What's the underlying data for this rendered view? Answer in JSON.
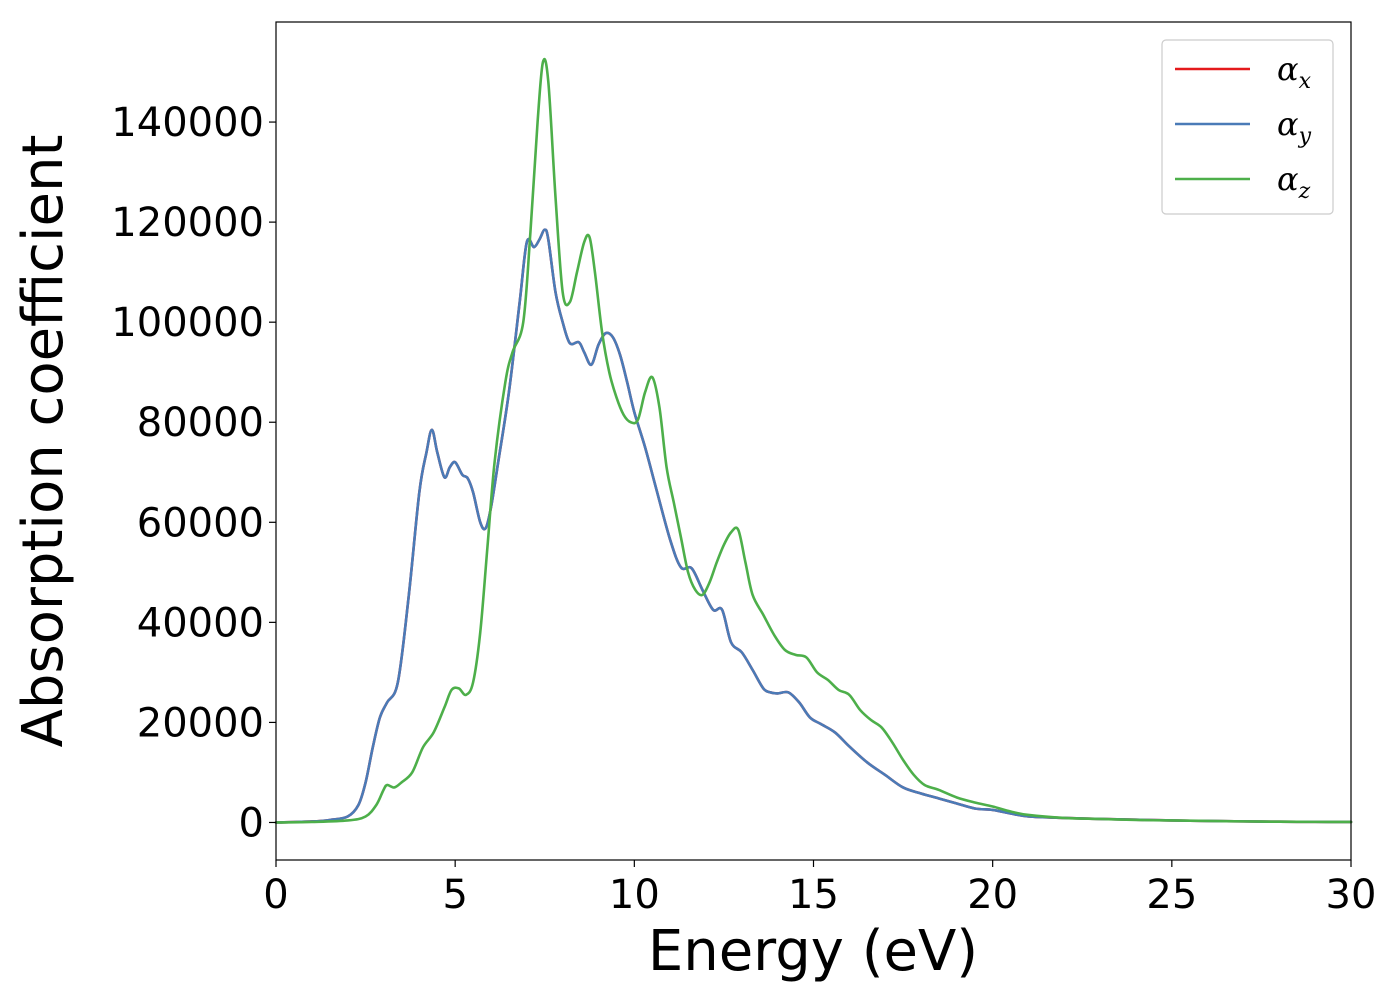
{
  "chart_data": {
    "type": "line",
    "xlabel": "Energy (eV)",
    "ylabel": "Absorption coefficient",
    "xlim": [
      0,
      30
    ],
    "ylim": [
      -7500,
      160000
    ],
    "xticks": [
      0,
      5,
      10,
      15,
      20,
      25,
      30
    ],
    "xtick_labels": [
      "0",
      "5",
      "10",
      "15",
      "20",
      "25",
      "30"
    ],
    "yticks": [
      0,
      20000,
      40000,
      60000,
      80000,
      100000,
      120000,
      140000
    ],
    "ytick_labels": [
      "0",
      "20000",
      "40000",
      "60000",
      "80000",
      "100000",
      "120000",
      "140000"
    ],
    "grid": false,
    "legend_position": "top-right",
    "series": [
      {
        "name": "α",
        "subscript": "x",
        "color": "#e41a1c",
        "x": [
          0,
          1,
          1.5,
          2,
          2.3,
          2.5,
          2.7,
          2.9,
          3.1,
          3.4,
          3.7,
          4.0,
          4.2,
          4.35,
          4.5,
          4.7,
          4.85,
          5.0,
          5.2,
          5.35,
          5.5,
          5.7,
          5.85,
          6.0,
          6.2,
          6.5,
          6.8,
          7.0,
          7.2,
          7.35,
          7.5,
          7.6,
          7.8,
          8.0,
          8.2,
          8.45,
          8.6,
          8.8,
          9.0,
          9.2,
          9.4,
          9.6,
          9.8,
          10.0,
          10.3,
          10.6,
          11.0,
          11.3,
          11.6,
          11.9,
          12.2,
          12.45,
          12.7,
          13.0,
          13.3,
          13.6,
          13.8,
          14.0,
          14.3,
          14.6,
          14.9,
          15.2,
          15.6,
          16.0,
          16.5,
          17.0,
          17.5,
          18.0,
          18.5,
          19.0,
          19.5,
          20.0,
          20.5,
          21.0,
          22.0,
          23.0,
          24.0,
          25.0,
          26.0,
          27.0,
          28.0,
          29.0,
          30.0
        ],
        "y": [
          0,
          200,
          500,
          1200,
          3500,
          8000,
          15000,
          21000,
          24000,
          28000,
          45000,
          66000,
          74000,
          78500,
          74000,
          69000,
          71000,
          72000,
          69500,
          68800,
          66000,
          60000,
          58800,
          63000,
          72000,
          86000,
          104000,
          116000,
          115000,
          116500,
          118500,
          116500,
          106000,
          100000,
          95800,
          96000,
          94000,
          91500,
          95500,
          97800,
          97000,
          93500,
          88000,
          82000,
          75000,
          67000,
          56500,
          51000,
          50800,
          46500,
          42500,
          42500,
          36000,
          34000,
          30500,
          26800,
          26000,
          25800,
          26000,
          24000,
          21000,
          19700,
          18000,
          15200,
          12000,
          9500,
          7000,
          5800,
          4800,
          3800,
          2800,
          2500,
          1800,
          1200,
          900,
          700,
          550,
          400,
          300,
          220,
          150,
          120,
          100
        ]
      },
      {
        "name": "α",
        "subscript": "y",
        "color": "#4a7bb7",
        "x": [
          0,
          1,
          1.5,
          2,
          2.3,
          2.5,
          2.7,
          2.9,
          3.1,
          3.4,
          3.7,
          4.0,
          4.2,
          4.35,
          4.5,
          4.7,
          4.85,
          5.0,
          5.2,
          5.35,
          5.5,
          5.7,
          5.85,
          6.0,
          6.2,
          6.5,
          6.8,
          7.0,
          7.2,
          7.35,
          7.5,
          7.6,
          7.8,
          8.0,
          8.2,
          8.45,
          8.6,
          8.8,
          9.0,
          9.2,
          9.4,
          9.6,
          9.8,
          10.0,
          10.3,
          10.6,
          11.0,
          11.3,
          11.6,
          11.9,
          12.2,
          12.45,
          12.7,
          13.0,
          13.3,
          13.6,
          13.8,
          14.0,
          14.3,
          14.6,
          14.9,
          15.2,
          15.6,
          16.0,
          16.5,
          17.0,
          17.5,
          18.0,
          18.5,
          19.0,
          19.5,
          20.0,
          20.5,
          21.0,
          22.0,
          23.0,
          24.0,
          25.0,
          26.0,
          27.0,
          28.0,
          29.0,
          30.0
        ],
        "y": [
          0,
          200,
          500,
          1200,
          3500,
          8000,
          15000,
          21000,
          24000,
          28000,
          45000,
          66000,
          74000,
          78500,
          74000,
          69000,
          71000,
          72000,
          69500,
          68800,
          66000,
          60000,
          58800,
          63000,
          72000,
          86000,
          104000,
          116000,
          115000,
          116500,
          118500,
          116500,
          106000,
          100000,
          95800,
          96000,
          94000,
          91500,
          95500,
          97800,
          97000,
          93500,
          88000,
          82000,
          75000,
          67000,
          56500,
          51000,
          50800,
          46500,
          42500,
          42500,
          36000,
          34000,
          30500,
          26800,
          26000,
          25800,
          26000,
          24000,
          21000,
          19700,
          18000,
          15200,
          12000,
          9500,
          7000,
          5800,
          4800,
          3800,
          2800,
          2500,
          1800,
          1200,
          900,
          700,
          550,
          400,
          300,
          220,
          150,
          120,
          100
        ]
      },
      {
        "name": "α",
        "subscript": "z",
        "color": "#4daf4a",
        "x": [
          0,
          1,
          2,
          2.5,
          2.8,
          3.0,
          3.1,
          3.3,
          3.5,
          3.8,
          4.1,
          4.4,
          4.7,
          4.9,
          5.1,
          5.3,
          5.5,
          5.7,
          5.9,
          6.1,
          6.4,
          6.6,
          6.9,
          7.1,
          7.3,
          7.45,
          7.6,
          7.8,
          8.0,
          8.2,
          8.4,
          8.6,
          8.75,
          8.9,
          9.1,
          9.3,
          9.5,
          9.7,
          9.9,
          10.1,
          10.3,
          10.5,
          10.7,
          10.9,
          11.1,
          11.3,
          11.5,
          11.7,
          11.9,
          12.1,
          12.3,
          12.5,
          12.7,
          12.9,
          13.1,
          13.3,
          13.6,
          13.9,
          14.2,
          14.5,
          14.8,
          15.1,
          15.4,
          15.7,
          16.0,
          16.3,
          16.6,
          16.9,
          17.2,
          17.5,
          17.8,
          18.1,
          18.5,
          19.0,
          19.5,
          20.0,
          20.5,
          21.0,
          22.0,
          23.0,
          24.0,
          25.0,
          26.0,
          27.0,
          28.0,
          29.0,
          30.0
        ],
        "y": [
          0,
          100,
          400,
          1200,
          3500,
          6500,
          7500,
          7000,
          8000,
          10000,
          15000,
          18000,
          23000,
          26500,
          26800,
          25500,
          28000,
          38000,
          55000,
          72000,
          88000,
          94000,
          100000,
          118000,
          140000,
          152000,
          148000,
          125000,
          106000,
          104000,
          110000,
          116000,
          117000,
          110000,
          98000,
          90000,
          85000,
          81500,
          80000,
          80500,
          86000,
          89000,
          83000,
          71000,
          64000,
          57000,
          50000,
          46500,
          45500,
          48000,
          52000,
          55500,
          58000,
          58500,
          52000,
          45500,
          41500,
          37500,
          34500,
          33500,
          33000,
          30000,
          28500,
          26500,
          25500,
          22500,
          20500,
          19000,
          16000,
          12500,
          9500,
          7500,
          6500,
          5000,
          4000,
          3200,
          2200,
          1500,
          900,
          700,
          500,
          400,
          300,
          220,
          150,
          120,
          100
        ]
      }
    ]
  }
}
